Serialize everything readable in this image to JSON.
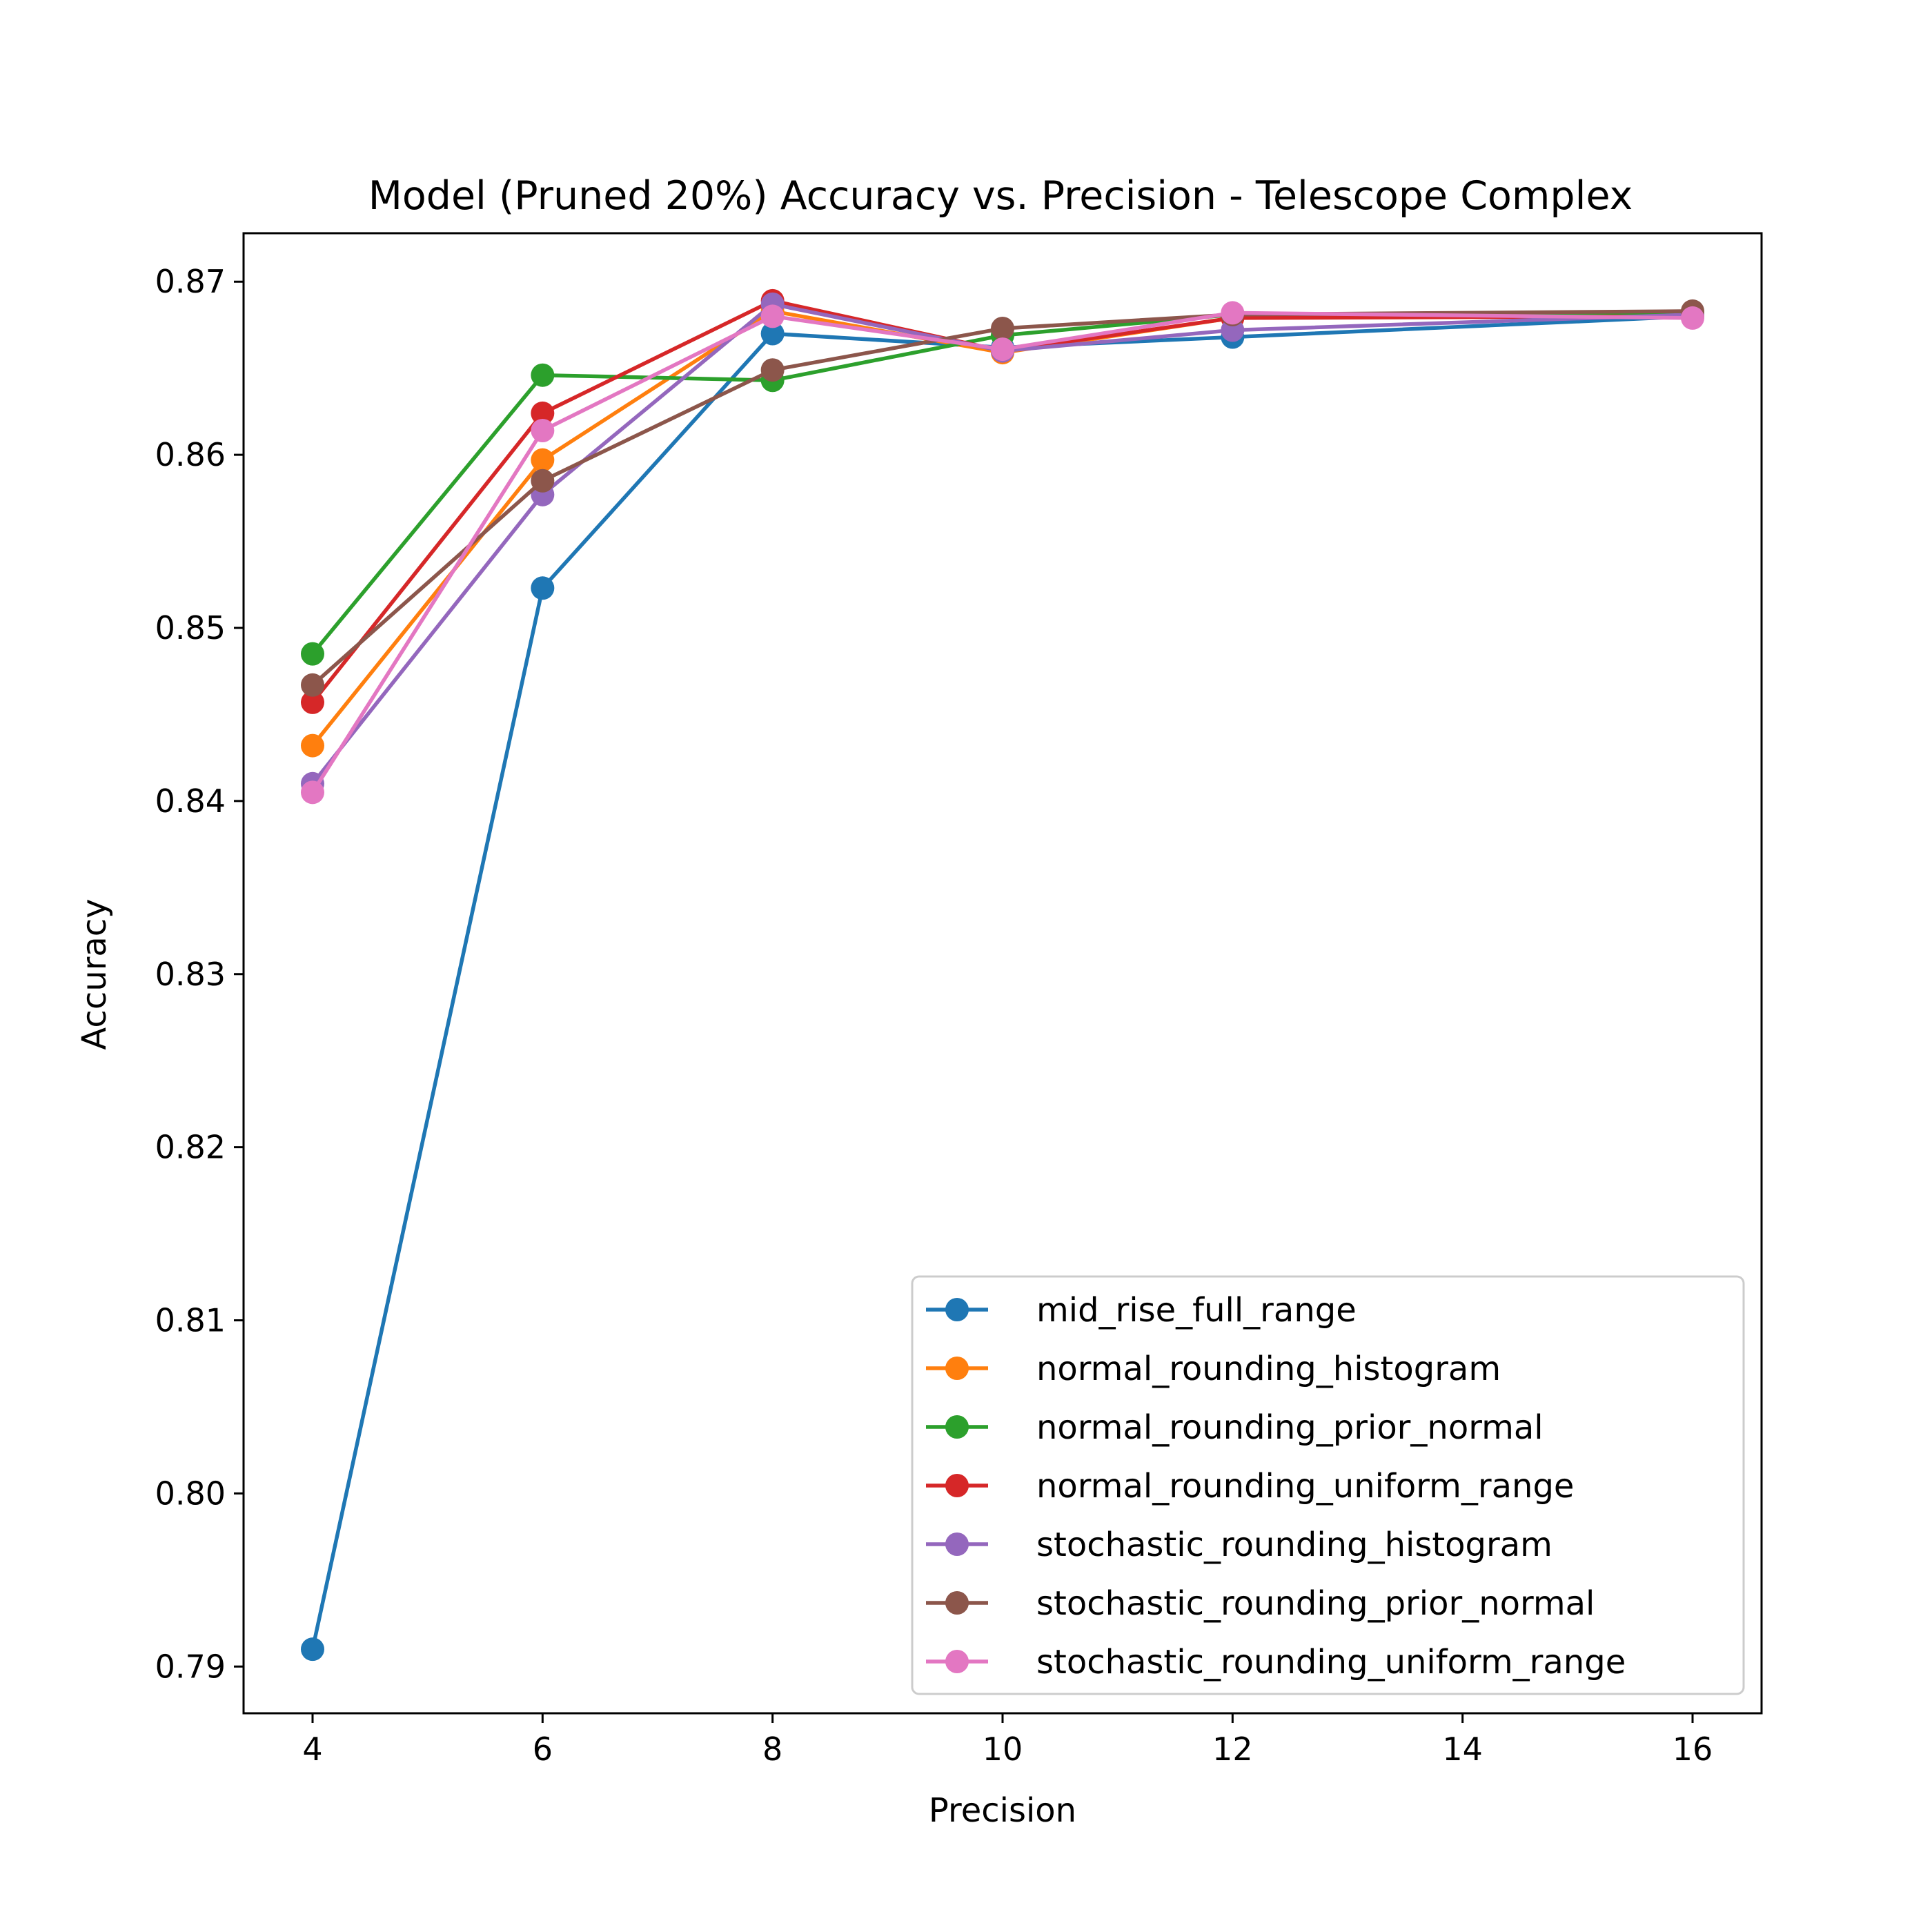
{
  "chart_data": {
    "type": "line",
    "title": "Model (Pruned 20%) Accuracy vs. Precision - Telescope Complex",
    "xlabel": "Precision",
    "ylabel": "Accuracy",
    "xlim": [
      3.4,
      16.6
    ],
    "ylim": [
      0.7873,
      0.8728
    ],
    "xticks": [
      4,
      6,
      8,
      10,
      12,
      14,
      16
    ],
    "xtick_labels": [
      "4",
      "6",
      "8",
      "10",
      "12",
      "14",
      "16"
    ],
    "yticks": [
      0.79,
      0.8,
      0.81,
      0.82,
      0.83,
      0.84,
      0.85,
      0.86,
      0.87
    ],
    "ytick_labels": [
      "0.79",
      "0.80",
      "0.81",
      "0.82",
      "0.83",
      "0.84",
      "0.85",
      "0.86",
      "0.87"
    ],
    "grid": false,
    "legend_position": "lower-right",
    "x": [
      4,
      6,
      8,
      10,
      12,
      16
    ],
    "series": [
      {
        "name": "mid_rise_full_range",
        "color": "#1f77b4",
        "values": [
          0.791,
          0.8523,
          0.867,
          0.8662,
          0.8668,
          0.868
        ]
      },
      {
        "name": "normal_rounding_histogram",
        "color": "#ff7f0e",
        "values": [
          0.8432,
          0.8597,
          0.8683,
          0.8659,
          0.8679,
          0.8681
        ]
      },
      {
        "name": "normal_rounding_prior_normal",
        "color": "#2ca02c",
        "values": [
          0.8485,
          0.8646,
          0.8643,
          0.8669,
          0.8681,
          0.8682
        ]
      },
      {
        "name": "normal_rounding_uniform_range",
        "color": "#d62728",
        "values": [
          0.8457,
          0.8624,
          0.8689,
          0.866,
          0.8679,
          0.868
        ]
      },
      {
        "name": "stochastic_rounding_histogram",
        "color": "#9467bd",
        "values": [
          0.841,
          0.8577,
          0.8687,
          0.866,
          0.8672,
          0.8681
        ]
      },
      {
        "name": "stochastic_rounding_prior_normal",
        "color": "#8c564b",
        "values": [
          0.8467,
          0.8585,
          0.8649,
          0.8673,
          0.8681,
          0.8683
        ]
      },
      {
        "name": "stochastic_rounding_uniform_range",
        "color": "#e377c2",
        "values": [
          0.8405,
          0.8614,
          0.868,
          0.8661,
          0.8682,
          0.8679
        ]
      }
    ]
  }
}
